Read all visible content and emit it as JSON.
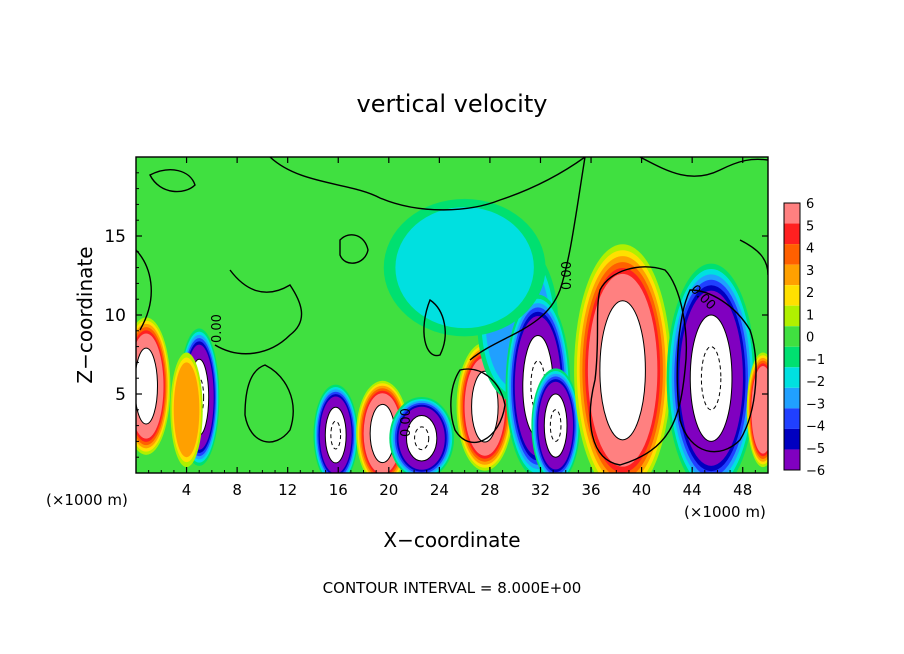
{
  "chart_data": {
    "type": "heatmap",
    "title": "vertical velocity",
    "xlabel": "X−coordinate",
    "ylabel": "Z−coordinate",
    "x_unit_left": "(×1000 m)",
    "x_unit_right": "(×1000 m)",
    "footer": "CONTOUR INTERVAL = 8.000E+00",
    "xlim": [
      0,
      50
    ],
    "ylim": [
      0,
      20
    ],
    "x_ticks": [
      4,
      8,
      12,
      16,
      20,
      24,
      28,
      32,
      36,
      40,
      44,
      48
    ],
    "y_ticks": [
      5,
      10,
      15
    ],
    "colorbar": {
      "ticks": [
        "6",
        "5",
        "4",
        "3",
        "2",
        "1",
        "0",
        "−1",
        "−2",
        "−3",
        "−4",
        "−5",
        "−6"
      ],
      "colors": [
        "#ff8080",
        "#ff2020",
        "#ff6000",
        "#ffa000",
        "#ffe000",
        "#b0f000",
        "#40e040",
        "#00e070",
        "#00e0e0",
        "#20a0ff",
        "#2040ff",
        "#0000c0",
        "#8000c0"
      ]
    },
    "contour_labels": [
      "0.00",
      "0.00",
      "0.00",
      "0.00"
    ],
    "features": [
      {
        "x": 0.8,
        "z": 5.5,
        "w": 1.2,
        "h": 3.0,
        "v": 8
      },
      {
        "x": 5.0,
        "z": 4.8,
        "w": 1.0,
        "h": 3.0,
        "v": -8
      },
      {
        "x": 4.0,
        "z": 4.0,
        "w": 0.8,
        "h": 2.5,
        "v": 3
      },
      {
        "x": 15.8,
        "z": 2.4,
        "w": 1.1,
        "h": 2.2,
        "v": -8
      },
      {
        "x": 19.5,
        "z": 2.5,
        "w": 1.3,
        "h": 2.3,
        "v": 8
      },
      {
        "x": 22.6,
        "z": 2.2,
        "w": 1.6,
        "h": 1.8,
        "v": -8
      },
      {
        "x": 27.6,
        "z": 4.2,
        "w": 1.4,
        "h": 2.8,
        "v": 7
      },
      {
        "x": 30.2,
        "z": 9.5,
        "w": 2.0,
        "h": 3.5,
        "v": -3
      },
      {
        "x": 31.8,
        "z": 5.5,
        "w": 1.6,
        "h": 4.0,
        "v": -7
      },
      {
        "x": 33.2,
        "z": 3.0,
        "w": 1.2,
        "h": 2.5,
        "v": -8
      },
      {
        "x": 38.5,
        "z": 6.5,
        "w": 2.4,
        "h": 5.5,
        "v": 9
      },
      {
        "x": 45.5,
        "z": 6.0,
        "w": 2.2,
        "h": 5.0,
        "v": -9
      },
      {
        "x": 26.0,
        "z": 13.0,
        "w": 4.0,
        "h": 3.0,
        "v": -1.5
      },
      {
        "x": 49.6,
        "z": 4.0,
        "w": 0.8,
        "h": 2.5,
        "v": 6
      }
    ]
  }
}
